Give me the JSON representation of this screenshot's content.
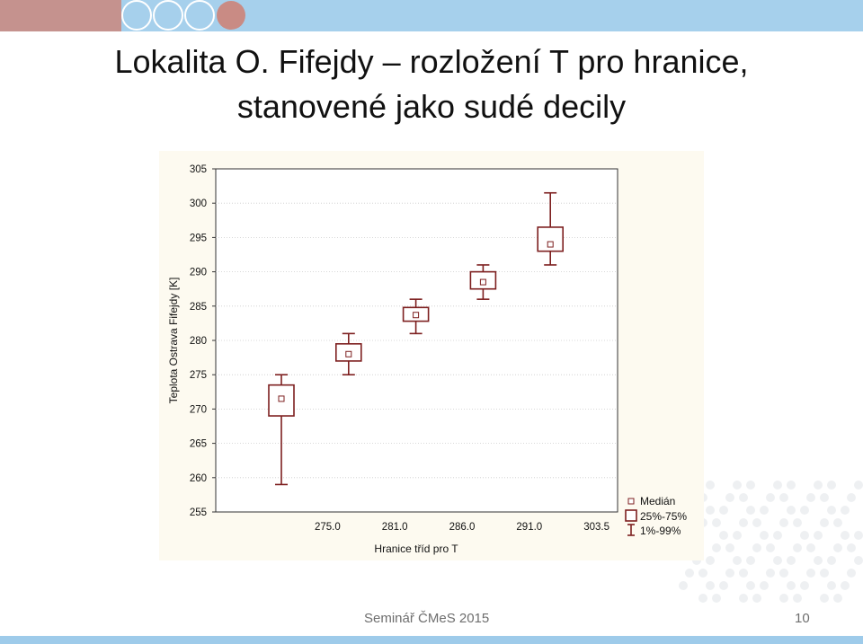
{
  "slide": {
    "title_line1": "Lokalita O. Fifejdy – rozložení T pro hranice,",
    "title_line2": "stanovené jako sudé decily",
    "footer": "Seminář ČMeS 2015",
    "page_number": "10"
  },
  "colors": {
    "accent_band": "#a6d0ec",
    "box_color": "#7d1f1f",
    "deco_pink": "#c98b84"
  },
  "chart_data": {
    "type": "boxplot",
    "xlabel": "Hranice tříd pro T",
    "ylabel": "Teplota Ostrava Fifejdy [K]",
    "ylim": [
      255,
      305
    ],
    "yticks": [
      "255",
      "260",
      "265",
      "270",
      "275",
      "280",
      "285",
      "290",
      "295",
      "300",
      "305"
    ],
    "grid": true,
    "legend_position": "right",
    "categories": [
      "",
      "275.0",
      "281.0",
      "286.0",
      "291.0",
      "303.5"
    ],
    "series": [
      {
        "category": "",
        "median": 271.5,
        "q1": 269.0,
        "q3": 273.5,
        "p1": 259.0,
        "p99": 275.0
      },
      {
        "category": "275.0",
        "median": 278.0,
        "q1": 277.0,
        "q3": 279.5,
        "p1": 275.0,
        "p99": 281.0
      },
      {
        "category": "281.0",
        "median": 283.7,
        "q1": 282.8,
        "q3": 284.8,
        "p1": 281.0,
        "p99": 286.0
      },
      {
        "category": "286.0",
        "median": 288.5,
        "q1": 287.5,
        "q3": 290.0,
        "p1": 286.0,
        "p99": 291.0
      },
      {
        "category": "291.0",
        "median": 294.0,
        "q1": 293.0,
        "q3": 296.5,
        "p1": 291.0,
        "p99": 301.5
      }
    ],
    "legend": [
      {
        "symbol": "median",
        "label": "Medián"
      },
      {
        "symbol": "box",
        "label": "25%-75%"
      },
      {
        "symbol": "whisker",
        "label": "1%-99%"
      }
    ]
  }
}
